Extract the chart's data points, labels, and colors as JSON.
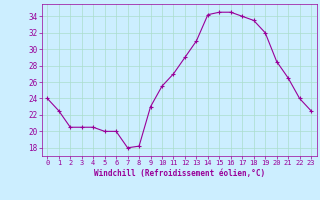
{
  "x": [
    0,
    1,
    2,
    3,
    4,
    5,
    6,
    7,
    8,
    9,
    10,
    11,
    12,
    13,
    14,
    15,
    16,
    17,
    18,
    19,
    20,
    21,
    22,
    23
  ],
  "y": [
    24,
    22.5,
    20.5,
    20.5,
    20.5,
    20,
    20,
    18,
    18.2,
    23,
    25.5,
    27,
    29,
    31,
    34.2,
    34.5,
    34.5,
    34,
    33.5,
    32,
    28.5,
    26.5,
    24,
    22.5
  ],
  "xlim": [
    -0.5,
    23.5
  ],
  "ylim": [
    17,
    35.5
  ],
  "yticks": [
    18,
    20,
    22,
    24,
    26,
    28,
    30,
    32,
    34
  ],
  "xticks": [
    0,
    1,
    2,
    3,
    4,
    5,
    6,
    7,
    8,
    9,
    10,
    11,
    12,
    13,
    14,
    15,
    16,
    17,
    18,
    19,
    20,
    21,
    22,
    23
  ],
  "xlabel": "Windchill (Refroidissement éolien,°C)",
  "line_color": "#990099",
  "marker": "+",
  "bg_color": "#cceeff",
  "grid_color": "#aaddcc",
  "tick_color": "#990099",
  "label_color": "#990099",
  "font_family": "monospace"
}
